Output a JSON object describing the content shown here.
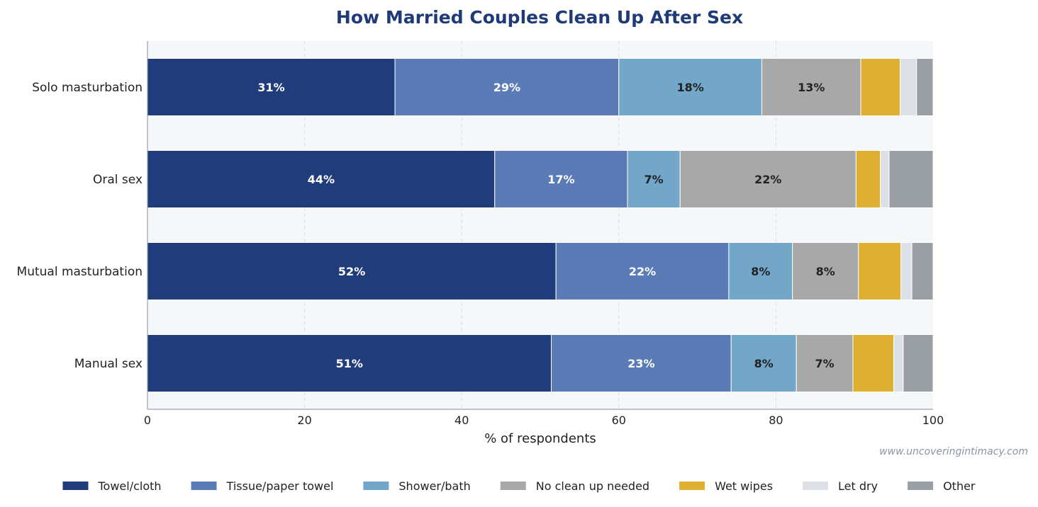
{
  "chart_data": {
    "type": "bar",
    "orientation": "horizontal",
    "stacked": true,
    "title": "How Married Couples Clean Up After Sex",
    "xlabel": "% of respondents",
    "ylabel": "",
    "xlim": [
      0,
      100
    ],
    "xticks": [
      "0",
      "20",
      "40",
      "60",
      "80",
      "100"
    ],
    "grid": "vertical dashed",
    "legend_position": "bottom",
    "source": "www.uncoveringintimacy.com",
    "categories": [
      "Solo masturbation",
      "Oral sex",
      "Mutual masturbation",
      "Manual sex"
    ],
    "series": [
      {
        "name": "Towel/cloth",
        "color": "#203c7a",
        "label_color": "#ffffff",
        "values": [
          31.5,
          44.2,
          52.0,
          51.4
        ],
        "labels": [
          "31%",
          "44%",
          "52%",
          "51%"
        ]
      },
      {
        "name": "Tissue/paper towel",
        "color": "#5b7bb6",
        "label_color": "#ffffff",
        "values": [
          28.5,
          16.9,
          22.0,
          22.9
        ],
        "labels": [
          "29%",
          "17%",
          "22%",
          "23%"
        ]
      },
      {
        "name": "Shower/bath",
        "color": "#72a7c9",
        "label_color": "#222222",
        "values": [
          18.2,
          6.7,
          8.1,
          8.3
        ],
        "labels": [
          "18%",
          "7%",
          "8%",
          "8%"
        ]
      },
      {
        "name": "No clean up needed",
        "color": "#a8a8a8",
        "label_color": "#222222",
        "values": [
          12.6,
          22.4,
          8.4,
          7.2
        ],
        "labels": [
          "13%",
          "22%",
          "8%",
          "7%"
        ]
      },
      {
        "name": "Wet wipes",
        "color": "#dfaf32",
        "label_color": "#222222",
        "values": [
          5.0,
          3.1,
          5.4,
          5.2
        ],
        "labels": [
          "",
          "",
          "",
          ""
        ]
      },
      {
        "name": "Let dry",
        "color": "#dde1e6",
        "label_color": "#222222",
        "values": [
          2.1,
          1.1,
          1.4,
          1.2
        ],
        "labels": [
          "",
          "",
          "",
          ""
        ]
      },
      {
        "name": "Other",
        "color": "#9a9fa6",
        "label_color": "#222222",
        "values": [
          2.1,
          5.6,
          2.7,
          3.8
        ],
        "labels": [
          "",
          "",
          "",
          ""
        ]
      }
    ]
  },
  "colors": {
    "title": "#1f3b77",
    "plot_background": "#f5f7fb",
    "grid": "#d9dde5",
    "axis": "#9aa0a8",
    "source": "#8a94a6"
  }
}
